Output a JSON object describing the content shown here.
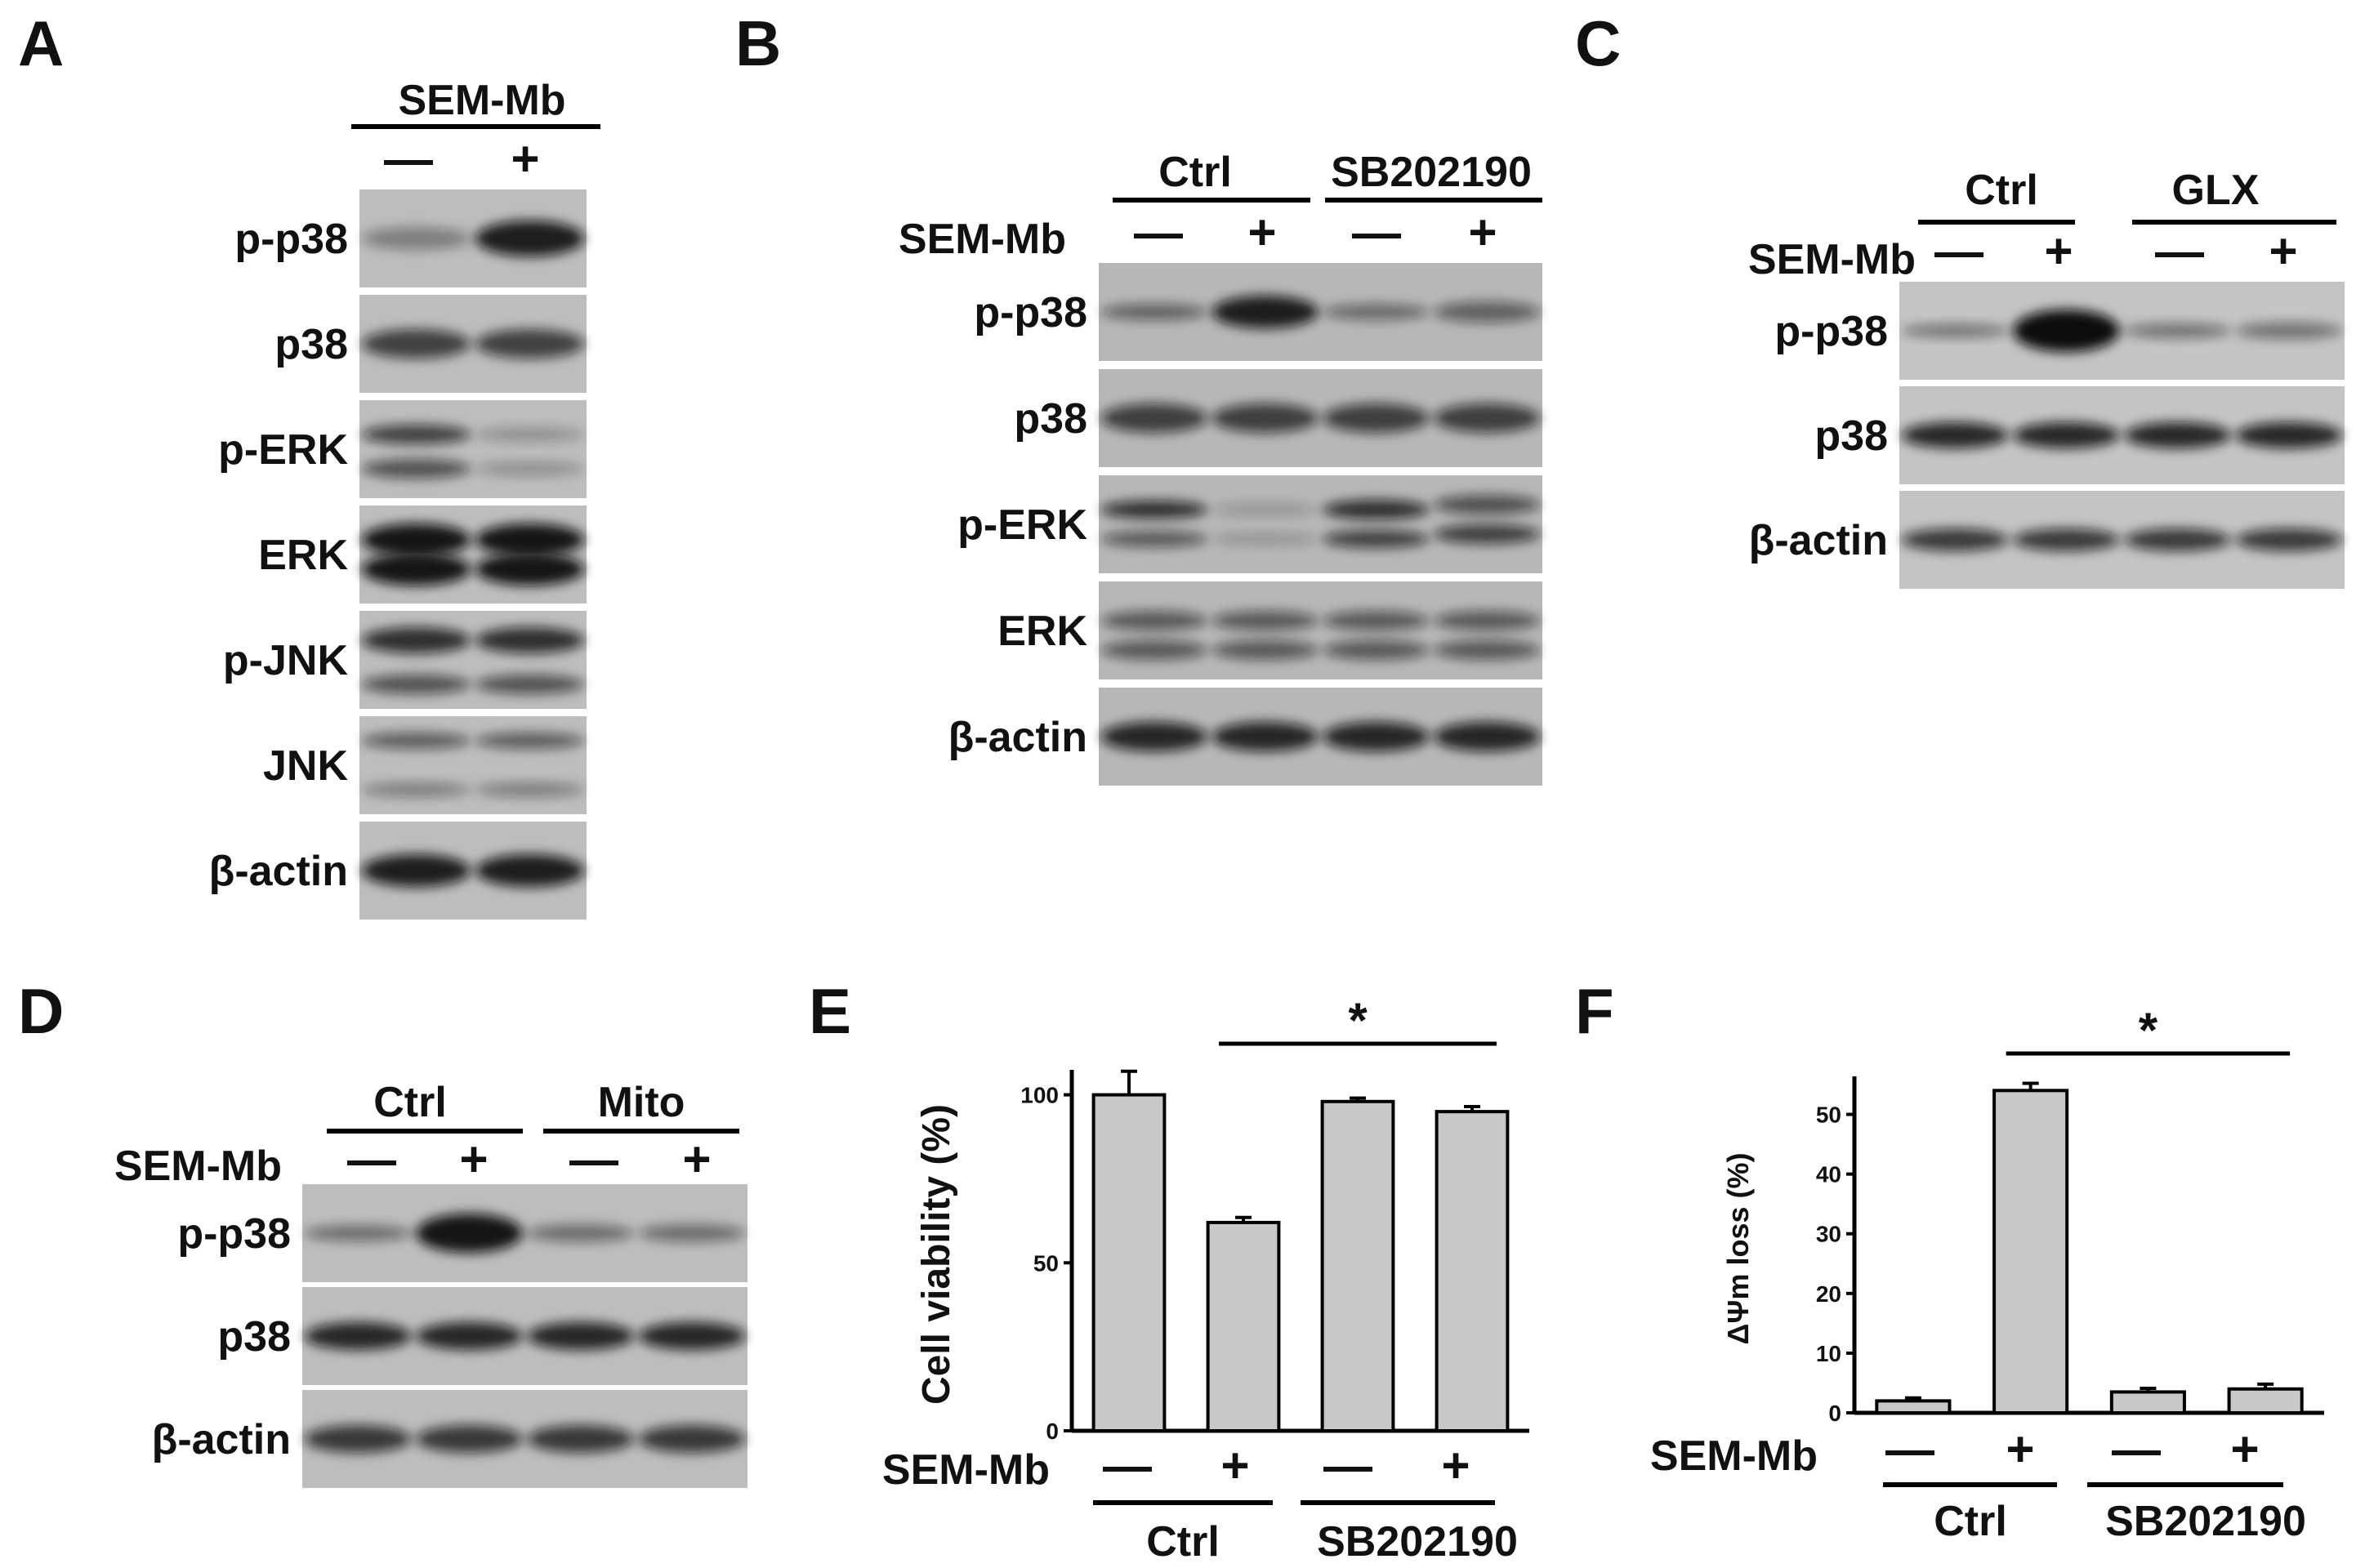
{
  "panels": {
    "A": {
      "label": "A",
      "treatment": "SEM-Mb",
      "signs": [
        "—",
        "+"
      ],
      "rows": [
        "p-p38",
        "p38",
        "p-ERK",
        "ERK",
        "p-JNK",
        "JNK",
        "β-actin"
      ]
    },
    "B": {
      "label": "B",
      "treatment": "SEM-Mb",
      "groups": [
        "Ctrl",
        "SB202190"
      ],
      "signs": [
        "—",
        "+",
        "—",
        "+"
      ],
      "rows": [
        "p-p38",
        "p38",
        "p-ERK",
        "ERK",
        "β-actin"
      ]
    },
    "C": {
      "label": "C",
      "treatment": "SEM-Mb",
      "groups": [
        "Ctrl",
        "GLX"
      ],
      "signs": [
        "—",
        "+",
        "—",
        "+"
      ],
      "rows": [
        "p-p38",
        "p38",
        "β-actin"
      ]
    },
    "D": {
      "label": "D",
      "treatment": "SEM-Mb",
      "groups": [
        "Ctrl",
        "Mito"
      ],
      "signs": [
        "—",
        "+",
        "—",
        "+"
      ],
      "rows": [
        "p-p38",
        "p38",
        "β-actin"
      ]
    },
    "E": {
      "label": "E",
      "treatment": "SEM-Mb",
      "signs": [
        "—",
        "+",
        "—",
        "+"
      ],
      "groups": [
        "Ctrl",
        "SB202190"
      ],
      "sig": "*"
    },
    "F": {
      "label": "F",
      "treatment": "SEM-Mb",
      "signs": [
        "—",
        "+",
        "—",
        "+"
      ],
      "groups": [
        "Ctrl",
        "SB202190"
      ],
      "sig": "*"
    }
  },
  "chart_data": [
    {
      "panel": "E",
      "type": "bar",
      "categories": [
        "Ctrl −",
        "Ctrl +",
        "SB202190 −",
        "SB202190 +"
      ],
      "values": [
        100,
        62,
        98,
        95
      ],
      "errors": [
        7,
        1.5,
        1,
        1.5
      ],
      "ylabel": "Cell viability (%)",
      "ylim": [
        0,
        105
      ],
      "yticks": [
        0,
        50,
        100
      ],
      "bar_color": "#c8c8c8",
      "significance": {
        "from": 1,
        "to": 3,
        "mark": "*"
      }
    },
    {
      "panel": "F",
      "type": "bar",
      "categories": [
        "Ctrl −",
        "Ctrl +",
        "SB202190 −",
        "SB202190 +"
      ],
      "values": [
        2,
        54,
        3.5,
        4
      ],
      "errors": [
        0.5,
        1.2,
        0.6,
        0.8
      ],
      "ylabel": "ΔΨm loss (%)",
      "ylim": [
        0,
        55
      ],
      "yticks": [
        0,
        10,
        20,
        30,
        40,
        50
      ],
      "bar_color": "#c8c8c8",
      "significance": {
        "from": 1,
        "to": 3,
        "mark": "*"
      }
    }
  ]
}
